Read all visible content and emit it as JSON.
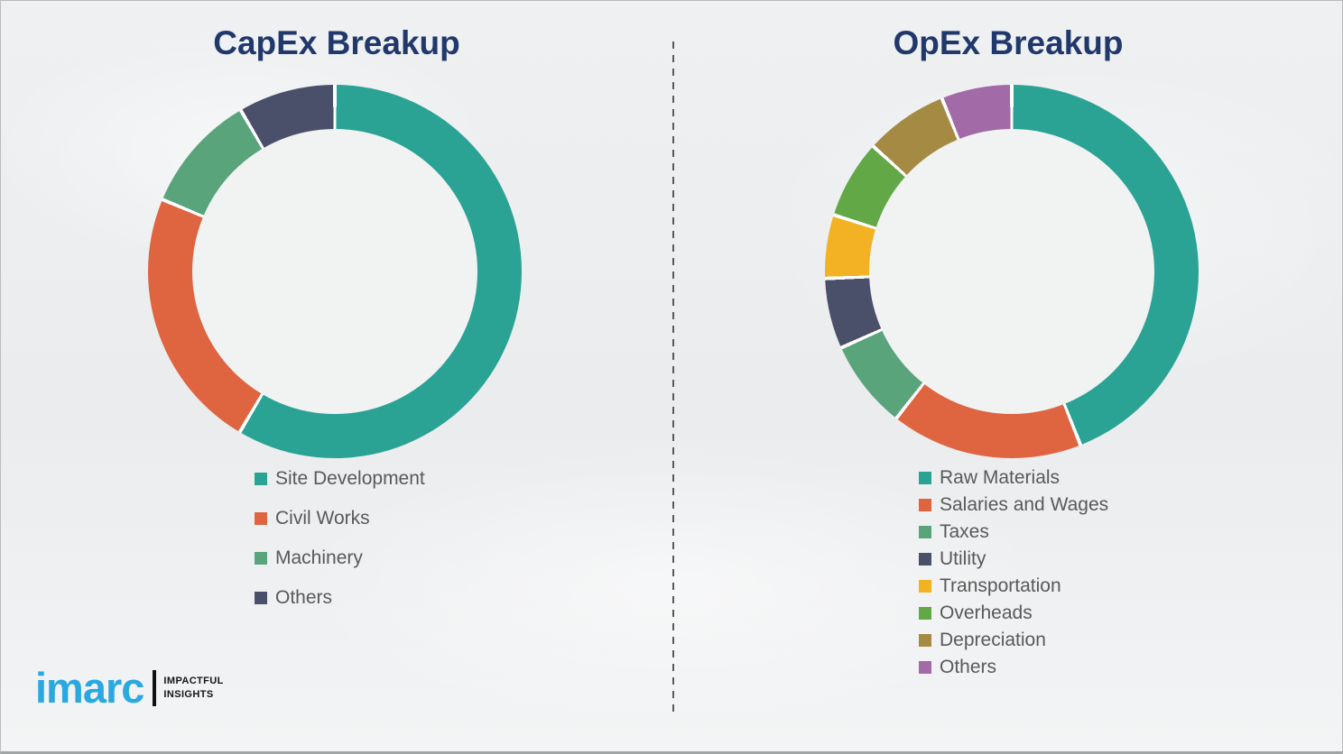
{
  "page": {
    "background_color": "#ebedee",
    "title_color": "#20386b",
    "legend_text_color": "#595959",
    "divider_color": "#565b5e",
    "segment_separator_color": "#ffffff"
  },
  "chart_data": [
    {
      "type": "pie",
      "subtype": "donut",
      "title": "CapEx Breakup",
      "categories": [
        "Site Development",
        "Civil Works",
        "Machinery",
        "Others"
      ],
      "values": [
        58.5,
        22.8,
        10.3,
        8.4
      ],
      "unit": "percent",
      "colors": [
        "#2aa394",
        "#df6440",
        "#5aa47c",
        "#4a5069"
      ],
      "start_angle_deg": 0,
      "direction": "clockwise",
      "inner_radius_ratio": 0.76,
      "legend_position": "below-left"
    },
    {
      "type": "pie",
      "subtype": "donut",
      "title": "OpEx Breakup",
      "categories": [
        "Raw Materials",
        "Salaries and Wages",
        "Taxes",
        "Utility",
        "Transportation",
        "Overheads",
        "Depreciation",
        "Others"
      ],
      "values": [
        44.0,
        16.6,
        7.7,
        6.1,
        5.5,
        6.8,
        7.2,
        6.1
      ],
      "unit": "percent",
      "colors": [
        "#2aa394",
        "#df6440",
        "#5aa47c",
        "#4a5069",
        "#f2b224",
        "#62a847",
        "#a58a43",
        "#a26aa6"
      ],
      "start_angle_deg": 0,
      "direction": "clockwise",
      "inner_radius_ratio": 0.76,
      "legend_position": "below-left"
    }
  ],
  "branding": {
    "logo_text": "imarc",
    "logo_color": "#2aa9e1",
    "tagline_line1": "IMPACTFUL",
    "tagline_line2": "INSIGHTS"
  }
}
